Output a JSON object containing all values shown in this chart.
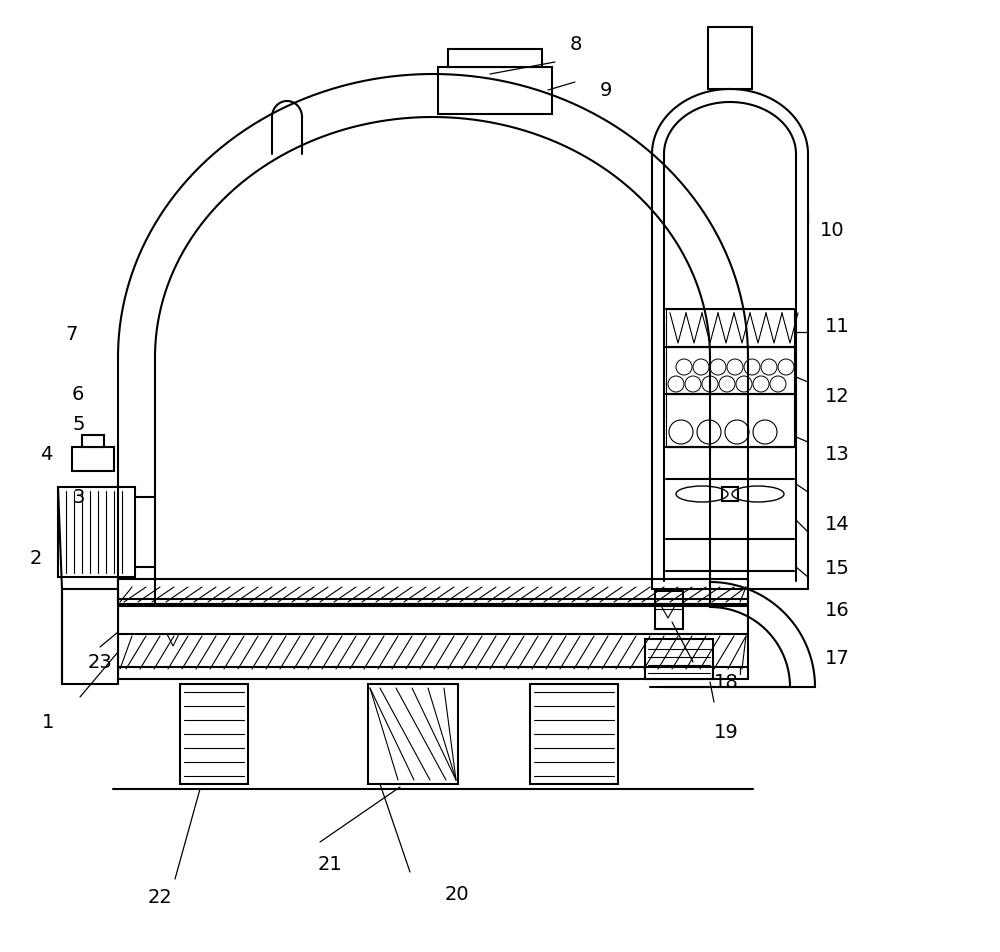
{
  "background_color": "#ffffff",
  "line_color": "#000000",
  "label_color": "#000000",
  "figsize": [
    10.0,
    9.53
  ],
  "dpi": 100
}
